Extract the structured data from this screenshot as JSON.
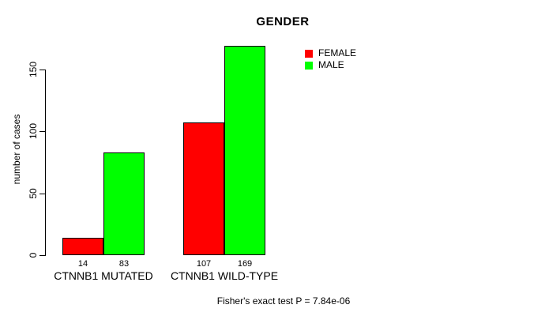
{
  "chart_data": {
    "type": "bar",
    "title": "GENDER",
    "ylabel": "number of cases",
    "xlabel": "",
    "categories": [
      "CTNNB1 MUTATED",
      "CTNNB1 WILD-TYPE"
    ],
    "series": [
      {
        "name": "FEMALE",
        "color": "#ff0000",
        "values": [
          14,
          107
        ]
      },
      {
        "name": "MALE",
        "color": "#00ff00",
        "values": [
          83,
          169
        ]
      }
    ],
    "yticks": [
      0,
      50,
      100,
      150
    ],
    "ylim": [
      0,
      170
    ],
    "grid": false,
    "legend_position": "top-right",
    "bar_value_labels_shown": true,
    "annotation": "Fisher's exact test P = 7.84e-06",
    "colors": {
      "bar_border": "#000000",
      "axis": "#000000",
      "text": "#000000",
      "background": "#ffffff"
    }
  }
}
